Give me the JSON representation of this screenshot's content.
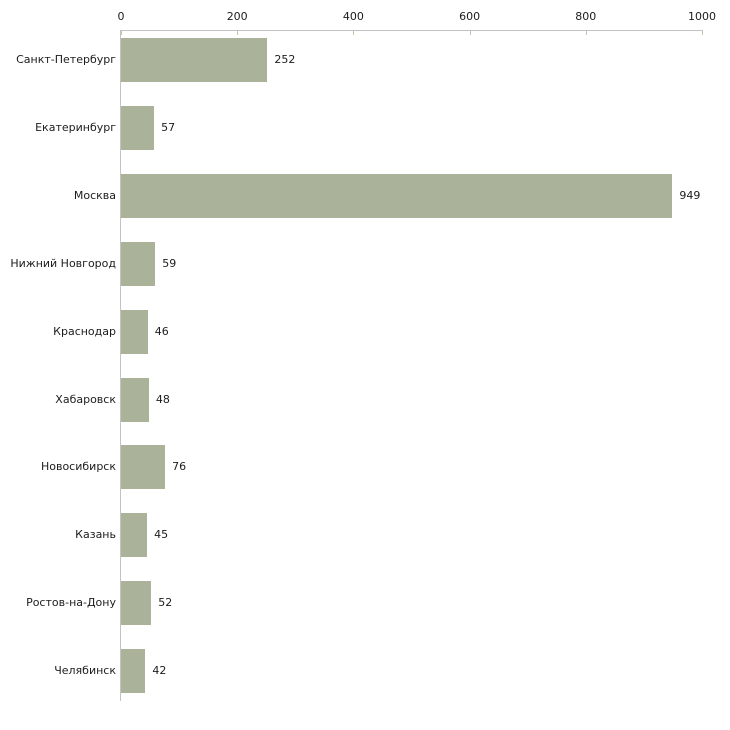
{
  "chart_data": {
    "type": "bar",
    "orientation": "horizontal",
    "title": "",
    "xlabel": "",
    "ylabel": "",
    "categories": [
      "Санкт-Петербург",
      "Екатеринбург",
      "Москва",
      "Нижний Новгород",
      "Краснодар",
      "Хабаровск",
      "Новосибирск",
      "Казань",
      "Ростов-на-Дону",
      "Челябинск"
    ],
    "values": [
      252,
      57,
      949,
      59,
      46,
      48,
      76,
      45,
      52,
      42
    ],
    "x_ticks": [
      0,
      200,
      400,
      600,
      800,
      1000
    ],
    "xlim": [
      0,
      1000
    ],
    "grid": false,
    "legend": "none",
    "axis_position": "top",
    "colors": {
      "bar_fill": "#abb29a",
      "axis_line": "#c3c3c3",
      "tick_mark": "#c2c6a7",
      "text": "#1c1c1c",
      "background": "#ffffff"
    }
  }
}
